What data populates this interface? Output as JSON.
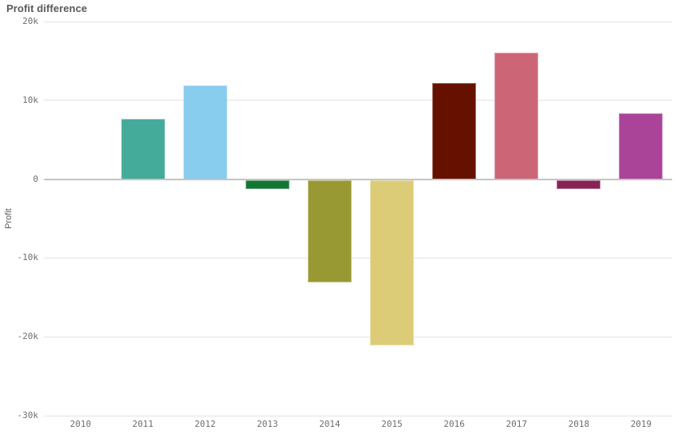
{
  "header": {
    "title": "Profit difference"
  },
  "chart_data": {
    "type": "bar",
    "title": "Profit difference",
    "xlabel": "",
    "ylabel": "Profit",
    "categories": [
      "2010",
      "2011",
      "2012",
      "2013",
      "2014",
      "2015",
      "2016",
      "2017",
      "2018",
      "2019"
    ],
    "values": [
      0,
      7700,
      11900,
      -1200,
      -13000,
      -21000,
      12200,
      16100,
      -1200,
      8400
    ],
    "bar_colors": [
      null,
      "#44AA99",
      "#88CCEE",
      "#117733",
      "#999933",
      "#DDCC77",
      "#661100",
      "#CC6677",
      "#882255",
      "#AA4499"
    ],
    "ylim": [
      -30000,
      20000
    ],
    "ytick_step": 10000,
    "ytick_values_top_to_bottom": [
      20000,
      10000,
      0,
      -10000,
      -20000,
      -30000
    ],
    "ytick_labels_top_to_bottom": [
      "20k",
      "10k",
      "0",
      "-10k",
      "-20k",
      "-30k"
    ],
    "grid": true,
    "legend": "none"
  },
  "colors": {
    "background": "#ffffff",
    "title_text": "#595959",
    "axis_text": "#6e6e6e",
    "gridline": "#e2e2e2",
    "zero_line": "#c4c4c4"
  }
}
